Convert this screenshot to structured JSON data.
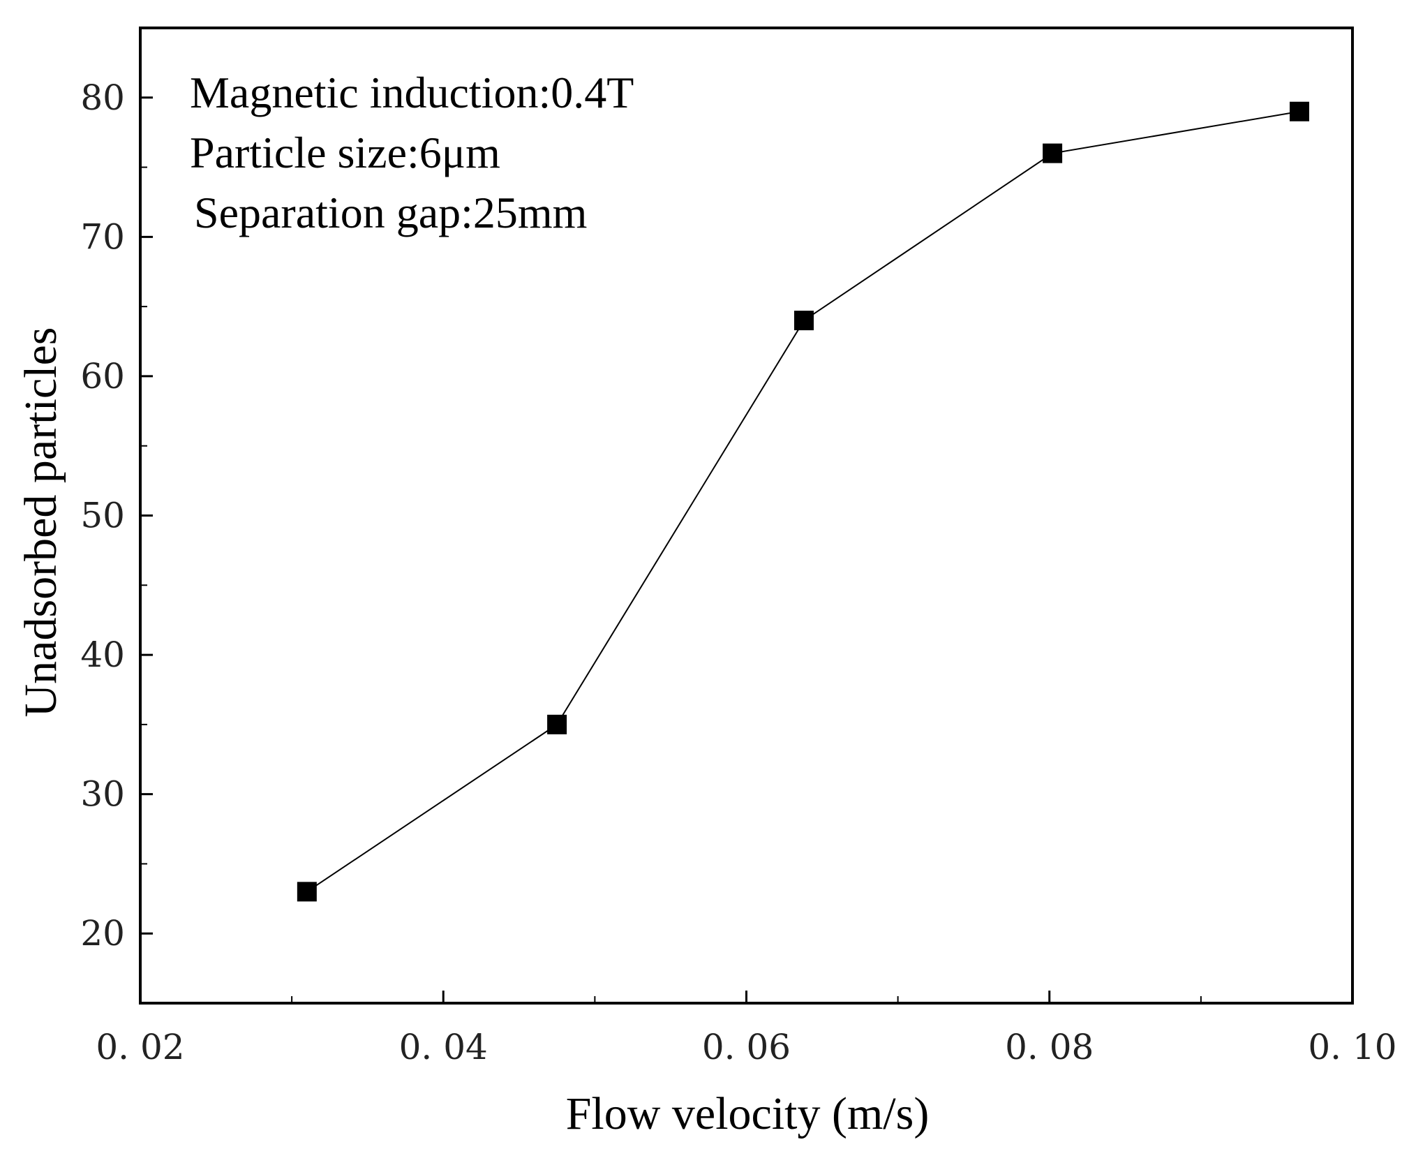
{
  "chart_data": {
    "type": "line",
    "title": "",
    "xlabel": "Flow velocity (m/s)",
    "ylabel": "Unadsorbed particles",
    "xlim": [
      0.02,
      0.1
    ],
    "ylim": [
      15,
      85
    ],
    "x_ticks": [
      0.02,
      0.04,
      0.06,
      0.08,
      0.1
    ],
    "x_tick_labels": [
      "0. 02",
      "0. 04",
      "0. 06",
      "0. 08",
      "0. 10"
    ],
    "y_ticks": [
      20,
      30,
      40,
      50,
      60,
      70,
      80
    ],
    "y_tick_labels": [
      "20",
      "30",
      "40",
      "50",
      "60",
      "70",
      "80"
    ],
    "grid": false,
    "series": [
      {
        "name": "Unadsorbed particles",
        "marker": "square",
        "color": "#000000",
        "x": [
          0.031,
          0.0475,
          0.0638,
          0.0802,
          0.0965
        ],
        "y": [
          23,
          35,
          64,
          76,
          79
        ]
      }
    ],
    "annotations": [
      "Magnetic induction:0.4T",
      "Particle size:6μm",
      "Separation gap:25mm"
    ]
  }
}
